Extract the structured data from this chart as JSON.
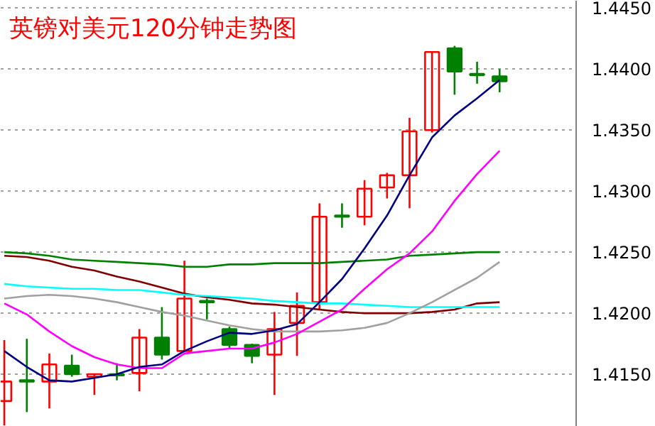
{
  "chart_data": {
    "type": "candlestick",
    "title": "英镑对美元120分钟走势图",
    "categories": [
      null,
      null,
      null,
      null,
      null,
      null,
      null,
      null,
      null,
      null,
      null,
      null,
      null,
      null,
      null,
      null,
      null,
      null,
      null,
      null,
      null,
      null,
      null
    ],
    "ohlc": [
      [
        1.4128,
        1.4178,
        1.4108,
        1.4144
      ],
      [
        1.4145,
        1.4179,
        1.4119,
        1.4144
      ],
      [
        1.4144,
        1.4167,
        1.4122,
        1.4158
      ],
      [
        1.4157,
        1.4166,
        1.4148,
        1.415
      ],
      [
        1.4148,
        1.415,
        1.4133,
        1.415
      ],
      [
        1.415,
        1.4159,
        1.4145,
        1.4149
      ],
      [
        1.4151,
        1.4187,
        1.4136,
        1.418
      ],
      [
        1.418,
        1.4205,
        1.4162,
        1.4166
      ],
      [
        1.4169,
        1.4243,
        1.4168,
        1.4212
      ],
      [
        1.421,
        1.4212,
        1.4195,
        1.4209
      ],
      [
        1.4187,
        1.4189,
        1.4171,
        1.4174
      ],
      [
        1.4174,
        1.4175,
        1.4159,
        1.4165
      ],
      [
        1.4166,
        1.4201,
        1.4133,
        1.4187
      ],
      [
        1.4192,
        1.4217,
        1.4165,
        1.4206
      ],
      [
        1.4209,
        1.429,
        1.4203,
        1.4279
      ],
      [
        1.428,
        1.429,
        1.427,
        1.4279
      ],
      [
        1.4279,
        1.4309,
        1.4272,
        1.4302
      ],
      [
        1.4303,
        1.4315,
        1.4294,
        1.4313
      ],
      [
        1.4313,
        1.436,
        1.4286,
        1.4349
      ],
      [
        1.435,
        1.4414,
        1.4348,
        1.4414
      ],
      [
        1.4417,
        1.4419,
        1.4379,
        1.4398
      ],
      [
        1.4396,
        1.4406,
        1.4388,
        1.4395
      ],
      [
        1.4394,
        1.44,
        1.4381,
        1.439
      ]
    ],
    "colors": [
      "#ff0000",
      "#008000",
      "#ff0000",
      "#008000",
      "#ff0000",
      "#008000",
      "#ff0000",
      "#008000",
      "#ff0000",
      "#008000",
      "#008000",
      "#008000",
      "#ff0000",
      "#ff0000",
      "#ff0000",
      "#008000",
      "#ff0000",
      "#ff0000",
      "#ff0000",
      "#ff0000",
      "#008000",
      "#008000",
      "#008000"
    ],
    "series": [
      {
        "type": "line",
        "color": "#008000",
        "values": [
          1.425,
          1.4249,
          1.4247,
          1.4244,
          1.4243,
          1.4242,
          1.4241,
          1.424,
          1.4238,
          1.4238,
          1.424,
          1.424,
          1.4241,
          1.4241,
          1.4241,
          1.4242,
          1.4243,
          1.4244,
          1.4247,
          1.4248,
          1.4249,
          1.425,
          1.425
        ]
      },
      {
        "type": "line",
        "color": "#800000",
        "values": [
          1.4247,
          1.4246,
          1.4243,
          1.4238,
          1.4235,
          1.423,
          1.4226,
          1.4221,
          1.4216,
          1.4213,
          1.4211,
          1.4208,
          1.4207,
          1.4205,
          1.4203,
          1.4201,
          1.42,
          1.42,
          1.42,
          1.4201,
          1.4203,
          1.4208,
          1.4209
        ]
      },
      {
        "type": "line",
        "color": "#00ffff",
        "values": [
          1.4224,
          1.4222,
          1.4221,
          1.422,
          1.422,
          1.4219,
          1.4219,
          1.4217,
          1.4215,
          1.4214,
          1.4213,
          1.4212,
          1.421,
          1.4209,
          1.4208,
          1.4208,
          1.4207,
          1.4206,
          1.4205,
          1.4205,
          1.4205,
          1.4205,
          1.4205
        ]
      },
      {
        "type": "line",
        "color": "#a0a0a0",
        "values": [
          1.4212,
          1.4214,
          1.4215,
          1.4214,
          1.4212,
          1.4209,
          1.4205,
          1.4201,
          1.4198,
          1.4194,
          1.419,
          1.4187,
          1.4185,
          1.4185,
          1.4185,
          1.4186,
          1.4188,
          1.4192,
          1.42,
          1.4209,
          1.4219,
          1.4229,
          1.4242
        ]
      },
      {
        "type": "line",
        "color": "#ff00ff",
        "values": [
          1.4208,
          1.4199,
          1.4185,
          1.4173,
          1.4164,
          1.4158,
          1.4155,
          1.4155,
          1.4167,
          1.4169,
          1.4171,
          1.4171,
          1.4176,
          1.4183,
          1.4193,
          1.4203,
          1.422,
          1.4236,
          1.4249,
          1.4267,
          1.4292,
          1.4314,
          1.4333
        ]
      },
      {
        "type": "line",
        "color": "#000080",
        "values": [
          1.4169,
          1.4156,
          1.4145,
          1.4144,
          1.4147,
          1.415,
          1.4156,
          1.4158,
          1.4169,
          1.4177,
          1.4184,
          1.4183,
          1.4186,
          1.4191,
          1.4209,
          1.4228,
          1.4253,
          1.428,
          1.4313,
          1.4344,
          1.4362,
          1.4376,
          1.4391
        ]
      }
    ],
    "ylim": [
      1.4107,
      1.4456
    ],
    "yticks": [
      {
        "value": 1.415,
        "label": "1.4150"
      },
      {
        "value": 1.42,
        "label": "1.4200"
      },
      {
        "value": 1.425,
        "label": "1.4250"
      },
      {
        "value": 1.43,
        "label": "1.4300"
      },
      {
        "value": 1.435,
        "label": "1.4350"
      },
      {
        "value": 1.44,
        "label": "1.4400"
      },
      {
        "value": 1.445,
        "label": "1.4450"
      }
    ],
    "tick_labels": "y",
    "grid": "y"
  }
}
